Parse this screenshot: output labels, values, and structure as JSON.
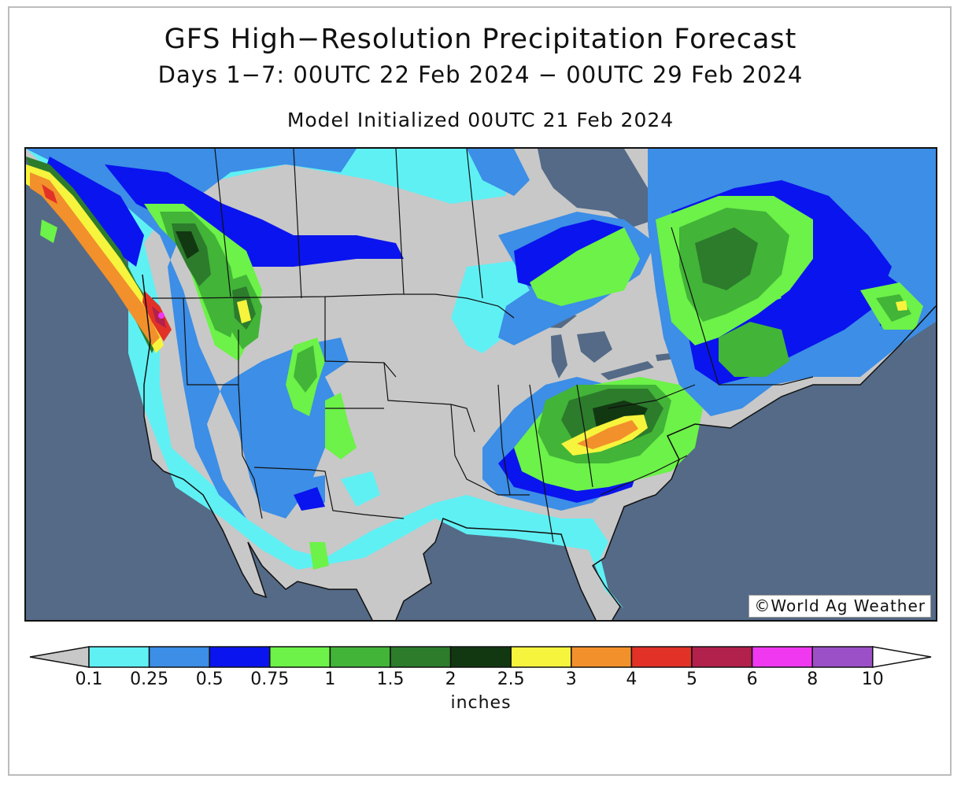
{
  "header": {
    "title": "GFS High−Resolution Precipitation Forecast",
    "subtitle": "Days 1−7: 00UTC 22 Feb 2024 − 00UTC 29 Feb 2024",
    "init": "Model Initialized 00UTC 21 Feb 2024"
  },
  "credit": "©World Ag Weather",
  "map": {
    "region": "North America",
    "ocean_color": "#546a86",
    "land_dry_color": "#c8c8c8",
    "border_color": "#111111",
    "icons": [
      "copyright-icon"
    ]
  },
  "legend": {
    "units": "inches",
    "ticks": [
      "0.1",
      "0.25",
      "0.5",
      "0.75",
      "1",
      "1.5",
      "2",
      "2.5",
      "3",
      "4",
      "5",
      "6",
      "8",
      "10"
    ],
    "under_color": "#c8c8c8",
    "over_color": "#ffffff",
    "colors": [
      "#5ff0f4",
      "#3c8ee6",
      "#0a14ee",
      "#6cf248",
      "#42b438",
      "#2c7c2c",
      "#123812",
      "#f6f43c",
      "#f2902c",
      "#e23228",
      "#b2204c",
      "#f038f0",
      "#9c50c8"
    ]
  }
}
